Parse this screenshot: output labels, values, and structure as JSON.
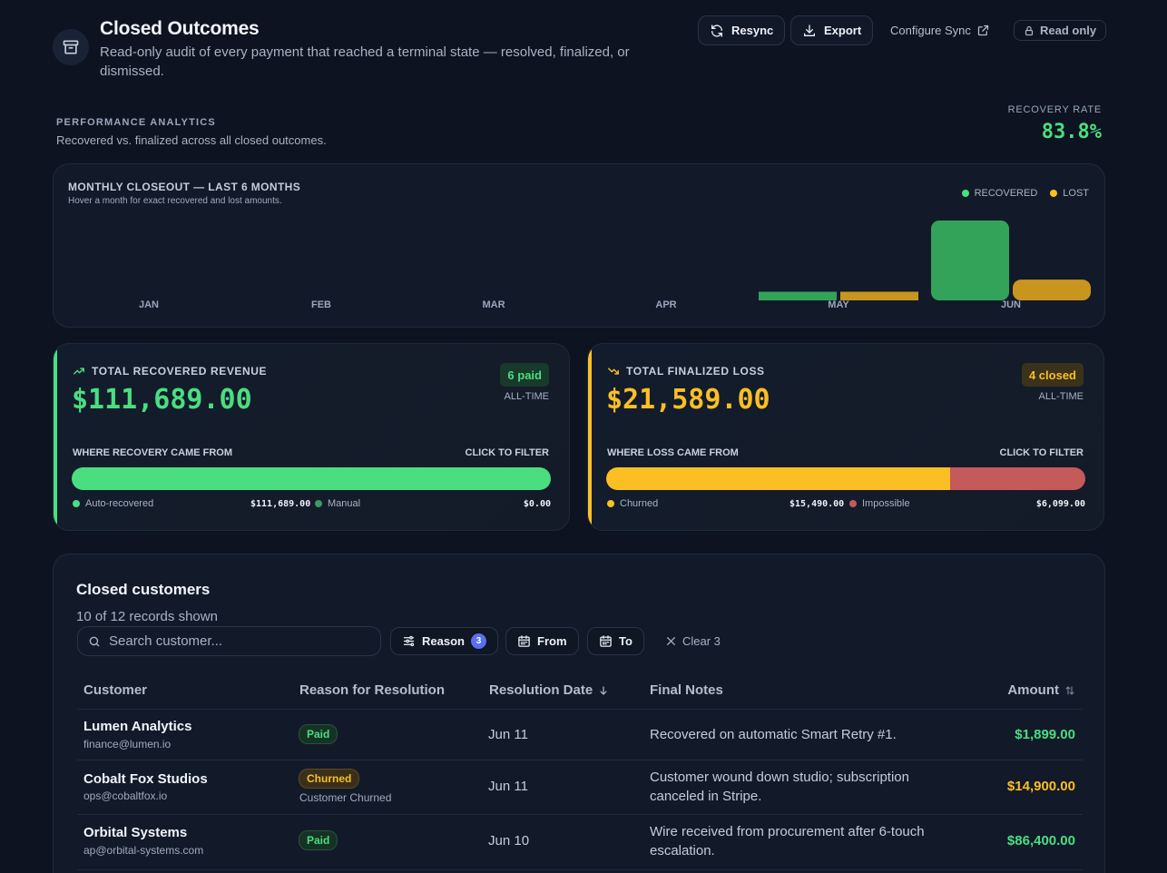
{
  "header": {
    "title": "Closed Outcomes",
    "subtitle": "Read-only audit of every payment that reached a terminal state — resolved, finalized, or dismissed.",
    "resync_label": "Resync",
    "export_label": "Export",
    "configure_label": "Configure Sync",
    "readonly_label": "Read only"
  },
  "analytics": {
    "label": "PERFORMANCE ANALYTICS",
    "subtitle": "Recovered vs. finalized across all closed outcomes.",
    "recovery_rate_label": "RECOVERY RATE",
    "recovery_rate_value": "83.8%"
  },
  "chart_data": {
    "type": "bar",
    "title": "MONTHLY CLOSEOUT — LAST 6 MONTHS",
    "subtitle": "Hover a month for exact recovered and lost amounts.",
    "categories": [
      "JAN",
      "FEB",
      "MAR",
      "APR",
      "MAY",
      "JUN"
    ],
    "series": [
      {
        "name": "RECOVERED",
        "color": "#33a35a",
        "values": [
          0,
          0,
          0,
          0,
          1899,
          109790
        ]
      },
      {
        "name": "LOST",
        "color": "#c8961f",
        "values": [
          0,
          0,
          0,
          0,
          1200,
          20389
        ]
      }
    ],
    "legend_position": "top-right",
    "grid": false
  },
  "recovered": {
    "title": "TOTAL RECOVERED REVENUE",
    "value": "$111,689.00",
    "badge": "6 paid",
    "period": "ALL-TIME",
    "where_label": "WHERE RECOVERY CAME FROM",
    "click_label": "CLICK TO FILTER",
    "auto_fraction": 1.0,
    "auto_label": "Auto-recovered",
    "auto_amount": "$111,689.00",
    "manual_label": "Manual",
    "manual_amount": "$0.00",
    "colors": {
      "primary": "#4ade80",
      "secondary": "#3a9d63"
    }
  },
  "loss": {
    "title": "TOTAL FINALIZED LOSS",
    "value": "$21,589.00",
    "badge": "4 closed",
    "period": "ALL-TIME",
    "where_label": "WHERE LOSS CAME FROM",
    "click_label": "CLICK TO FILTER",
    "churned_fraction": 0.7175,
    "churned_label": "Churned",
    "churned_amount": "$15,490.00",
    "impossible_label": "Impossible",
    "impossible_amount": "$6,099.00",
    "colors": {
      "primary": "#fbbf24",
      "secondary": "#c45a5a"
    }
  },
  "table": {
    "title": "Closed customers",
    "count_text": "10 of 12 records shown",
    "search_placeholder": "Search customer...",
    "filter_reason_label": "Reason",
    "filter_reason_count": "3",
    "filter_from_label": "From",
    "filter_to_label": "To",
    "clear_label": "Clear 3",
    "columns": {
      "customer": "Customer",
      "reason": "Reason for Resolution",
      "date": "Resolution Date",
      "notes": "Final Notes",
      "amount": "Amount"
    },
    "rows": [
      {
        "name": "Lumen Analytics",
        "email": "finance@lumen.io",
        "status": "Paid",
        "status_sub": "",
        "date": "Jun 11",
        "notes": "Recovered on automatic Smart Retry #1.",
        "amount": "$1,899.00",
        "amount_color": "#4ade80"
      },
      {
        "name": "Cobalt Fox Studios",
        "email": "ops@cobaltfox.io",
        "status": "Churned",
        "status_sub": "Customer Churned",
        "date": "Jun 11",
        "notes": "Customer wound down studio; subscription canceled in Stripe.",
        "amount": "$14,900.00",
        "amount_color": "#fbbf24"
      },
      {
        "name": "Orbital Systems",
        "email": "ap@orbital-systems.com",
        "status": "Paid",
        "status_sub": "",
        "date": "Jun 10",
        "notes": "Wire received from procurement after 6-touch escalation.",
        "amount": "$86,400.00",
        "amount_color": "#4ade80"
      }
    ]
  }
}
